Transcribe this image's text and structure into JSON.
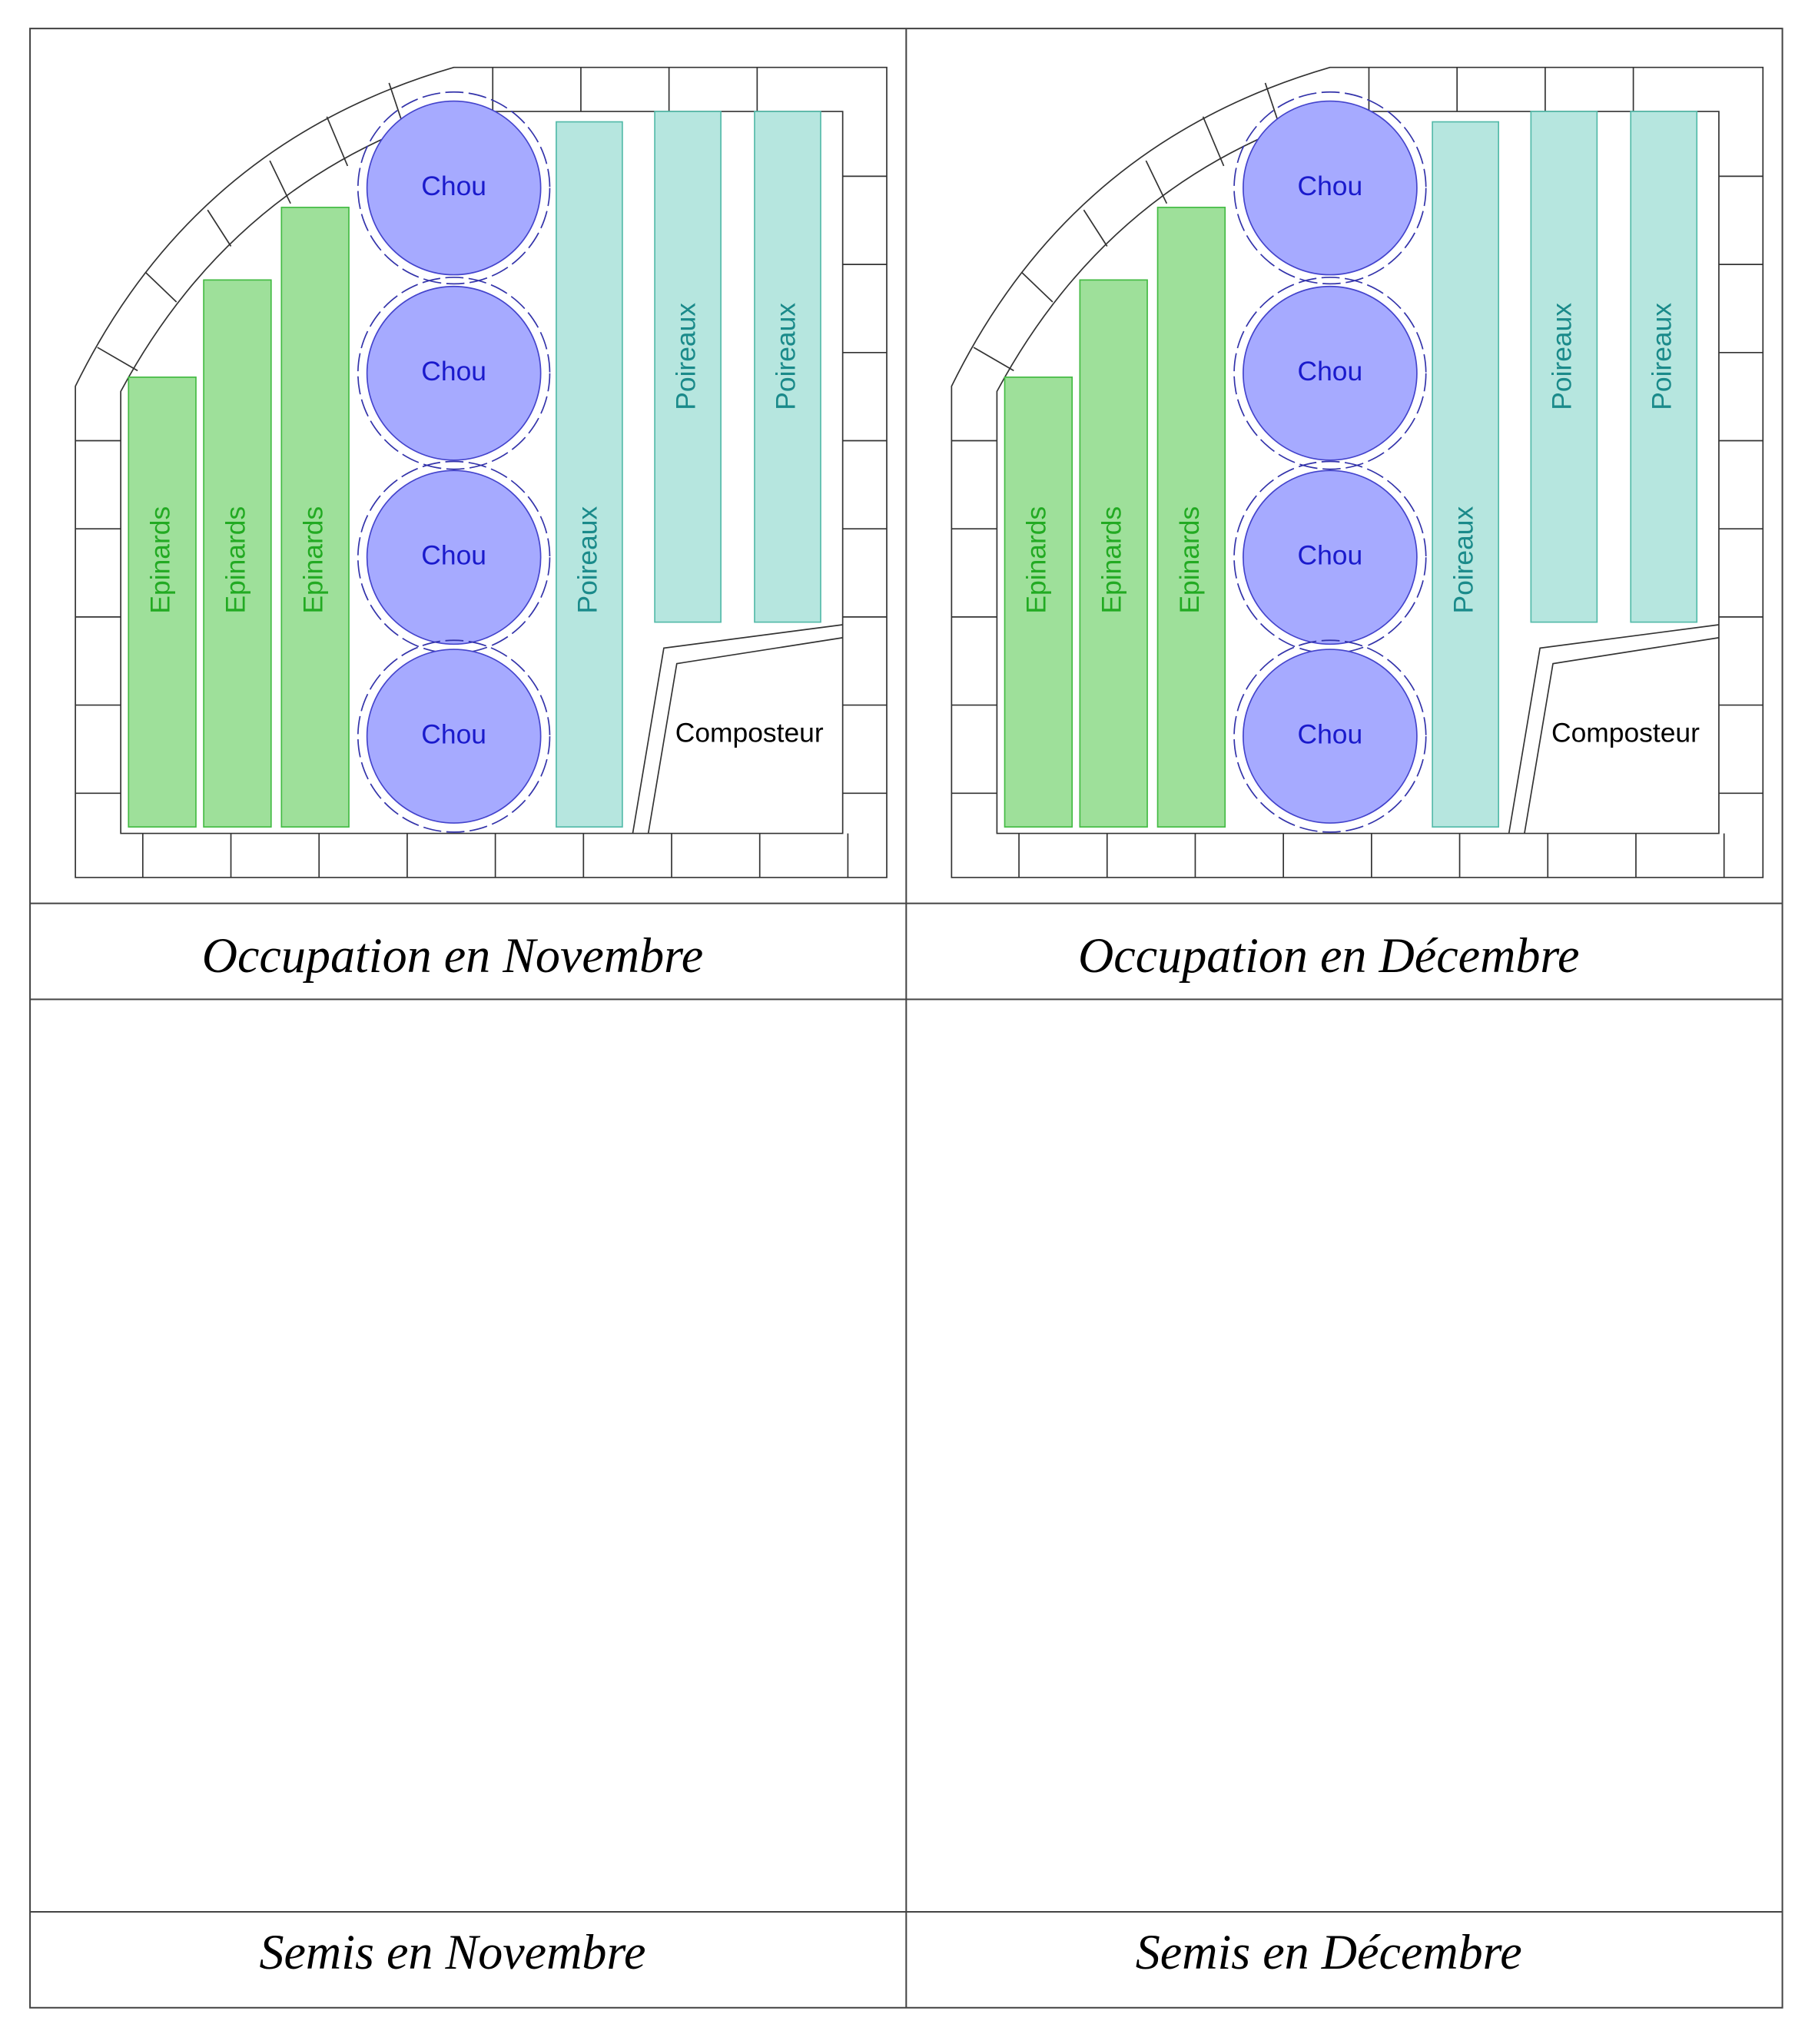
{
  "panels": [
    {
      "title": "Occupation en Novembre",
      "beds": {
        "epinards": [
          "Epinards",
          "Epinards",
          "Epinards"
        ],
        "chou": [
          "Chou",
          "Chou",
          "Chou",
          "Chou"
        ],
        "poireaux": [
          "Poireaux",
          "Poireaux",
          "Poireaux"
        ],
        "composteur": "Composteur"
      }
    },
    {
      "title": "Occupation en Décembre",
      "beds": {
        "epinards": [
          "Epinards",
          "Epinards",
          "Epinards"
        ],
        "chou": [
          "Chou",
          "Chou",
          "Chou",
          "Chou"
        ],
        "poireaux": [
          "Poireaux",
          "Poireaux",
          "Poireaux"
        ],
        "composteur": "Composteur"
      }
    },
    {
      "title": "Semis en Novembre"
    },
    {
      "title": "Semis en Décembre"
    }
  ]
}
